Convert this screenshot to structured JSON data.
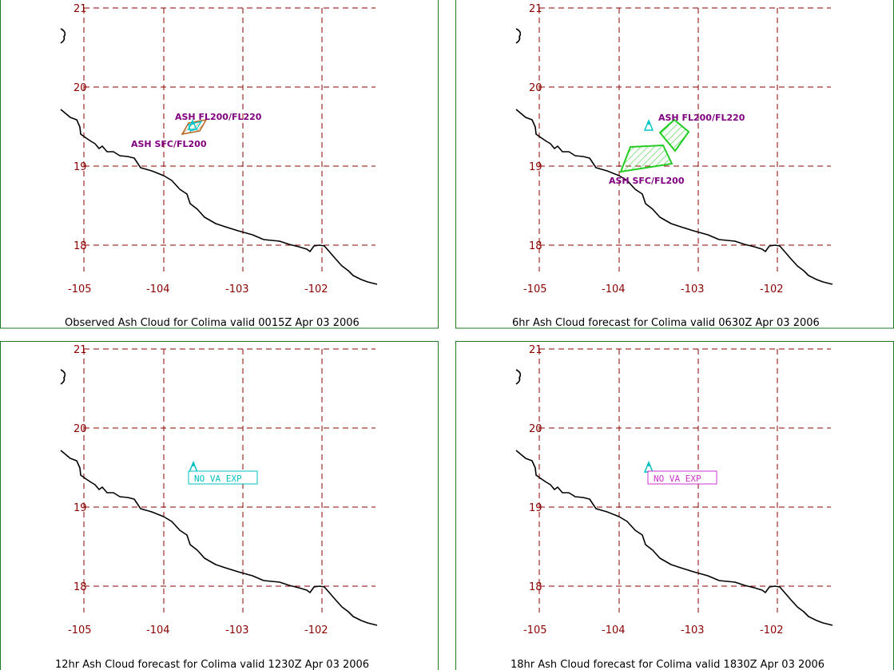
{
  "colors": {
    "frame": "#1e7a1e",
    "grid": "#8b0000",
    "coastline": "#000000",
    "volcano": "#00c8c8",
    "label": "#800080",
    "observed_polygon": "#b5651d",
    "forecast_polygon": "#22cc22",
    "no_va_cyan": "#00c0c0",
    "no_va_magenta": "#cc33cc"
  },
  "axes": {
    "lon_ticks": [
      "-105",
      "-104",
      "-103",
      "-102"
    ],
    "lat_ticks": [
      "21",
      "20",
      "19",
      "18"
    ]
  },
  "panels": [
    {
      "caption": "Observed Ash Cloud for Colima valid 0015Z Apr 03 2006",
      "labels": [
        "ASH FL200/FL220",
        "ASH SFC/FL200"
      ],
      "icon": "volcano-icon",
      "box_text": ""
    },
    {
      "caption": "6hr Ash Cloud forecast for Colima valid 0630Z Apr 03 2006",
      "labels": [
        "ASH FL200/FL220",
        "ASH SFC/FL200"
      ],
      "icon": "volcano-icon",
      "box_text": ""
    },
    {
      "caption": "12hr Ash Cloud forecast for Colima valid 1230Z Apr 03 2006",
      "labels": [],
      "icon": "volcano-icon",
      "box_text": "NO VA EXP"
    },
    {
      "caption": "18hr Ash Cloud forecast for Colima valid 1830Z Apr 03 2006",
      "labels": [],
      "icon": "volcano-icon",
      "box_text": "NO VA EXP"
    }
  ]
}
